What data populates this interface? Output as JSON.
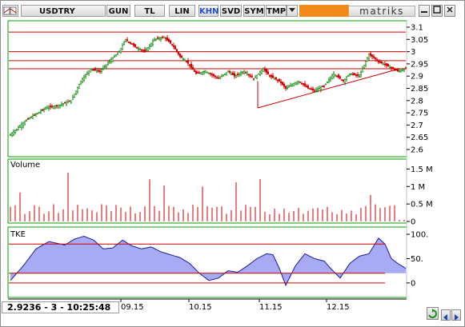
{
  "toolbar": {
    "symbol": "USDTRY",
    "buttons": [
      "GUN",
      "TL",
      "LIN",
      "KHN",
      "SVD",
      "SYM",
      "TMP"
    ],
    "active": "KHN",
    "brand": "matriks",
    "dropdown_icon": "chevron-down-icon",
    "window_controls": [
      "minimize-icon",
      "restore-icon",
      "close-icon"
    ]
  },
  "price_panel": {
    "y_ticks": [
      "3.1",
      "3.05",
      "3",
      "2.95",
      "2.9",
      "2.85",
      "2.8",
      "2.75",
      "2.7",
      "2.65",
      "2.6"
    ],
    "ylim": [
      2.6,
      3.1
    ],
    "horizontal_lines": [
      3.08,
      3.0,
      2.963,
      2.93
    ],
    "trendline": {
      "from": [
        2.77
      ],
      "to": [
        2.93
      ]
    }
  },
  "volume_panel": {
    "title": "Volume",
    "y_ticks": [
      "1.5 M",
      "1 M",
      "0.5 M",
      "0"
    ]
  },
  "tke_panel": {
    "title": "TKE",
    "y_ticks": [
      "100.",
      "50.",
      "0"
    ],
    "levels": [
      80,
      20
    ]
  },
  "x_axis": {
    "labels": [
      "09.15",
      "10.15",
      "11.15",
      "12.15"
    ]
  },
  "status": {
    "readout": "2.9236 - 3 - 10:25:48"
  },
  "nav": {
    "icons": [
      "refresh-icon",
      "scroll-left-icon",
      "scroll-right-icon"
    ]
  },
  "colors": {
    "up_candle": "#ffffff",
    "down_candle": "#cc0000",
    "bull_wick": "#008000",
    "line_red": "#cc0000",
    "tke_fill": "#8c8ef0",
    "accent_orange": "#f28a1a"
  }
}
